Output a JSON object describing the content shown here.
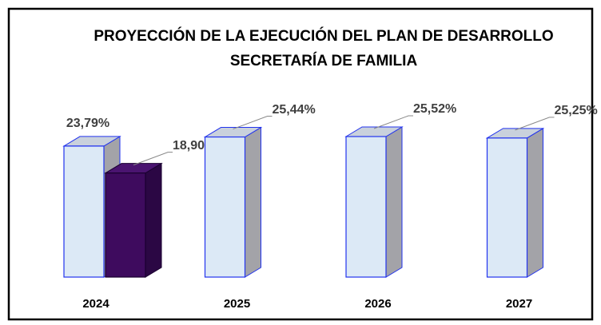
{
  "chart_data": {
    "type": "bar3d",
    "title": "PROYECCIÓN DE LA EJECUCIÓN DEL PLAN DE DESARROLLO",
    "subtitle": "SECRETARÍA DE FAMILIA",
    "categories": [
      "2024",
      "2025",
      "2026",
      "2027"
    ],
    "series": [
      {
        "color": "#dce9f6",
        "values": [
          23.79,
          25.44,
          25.52,
          25.25
        ],
        "value_labels": [
          "23,79%",
          "25,44%",
          "25,52%",
          "25,25%"
        ]
      },
      {
        "color": "#3e0b5e",
        "values": [
          18.9,
          null,
          null,
          null
        ],
        "value_labels": [
          "18,90%",
          null,
          null,
          null
        ]
      }
    ]
  }
}
